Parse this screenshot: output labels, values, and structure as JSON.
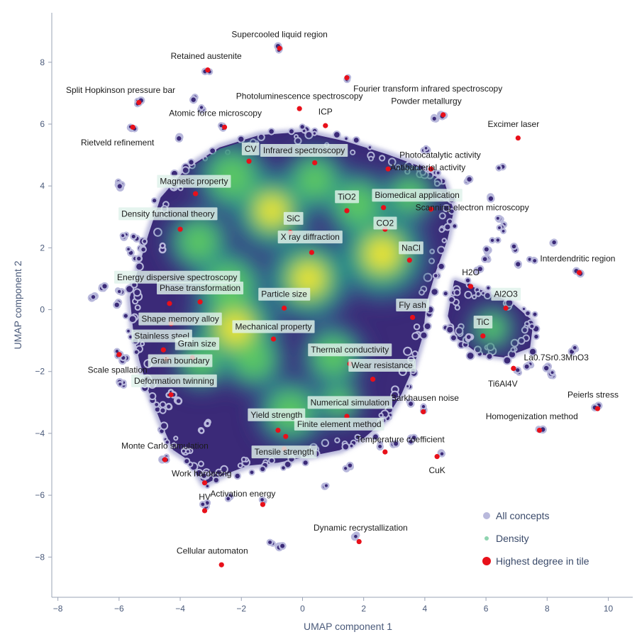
{
  "chart_data": {
    "type": "scatter",
    "title": "",
    "xlabel": "UMAP component 1",
    "ylabel": "UMAP component 2",
    "xlim": [
      -8.2,
      10.8
    ],
    "ylim": [
      -9.3,
      9.6
    ],
    "xticks": [
      -8,
      -6,
      -4,
      -2,
      0,
      2,
      4,
      6,
      8,
      10
    ],
    "yticks": [
      -8,
      -6,
      -4,
      -2,
      0,
      2,
      4,
      6,
      8
    ],
    "xtick_labels": [
      "−8",
      "−6",
      "−4",
      "−2",
      "0",
      "2",
      "4",
      "6",
      "8",
      "10"
    ],
    "ytick_labels": [
      "−8",
      "−6",
      "−4",
      "−2",
      "0",
      "2",
      "4",
      "6",
      "8"
    ],
    "grid": false,
    "legend": {
      "placement": "bottom-right",
      "entries": [
        {
          "label": "All concepts",
          "color": "#b9b9dc"
        },
        {
          "label": "Density",
          "color": "#8fd4b0"
        },
        {
          "label": "Highest degree in tile",
          "color": "#e8101a"
        }
      ]
    },
    "colors": {
      "concepts_halo": "#b9b9dc",
      "concepts_core": "#3b2a78",
      "density_low": "#3b528b",
      "density_mid": "#21918c",
      "density_high": "#5ec962",
      "density_peak": "#fde725",
      "highlight": "#e8101a",
      "label_bg": "#dff1ea"
    },
    "main_cluster": {
      "outline": [
        [
          -3.2,
          -5.6
        ],
        [
          -3.6,
          -4.9
        ],
        [
          -4.2,
          -4.5
        ],
        [
          -4.6,
          -3.6
        ],
        [
          -5.0,
          -2.6
        ],
        [
          -5.3,
          -1.6
        ],
        [
          -5.5,
          -0.6
        ],
        [
          -5.6,
          0.4
        ],
        [
          -5.3,
          1.4
        ],
        [
          -5.0,
          2.4
        ],
        [
          -4.6,
          3.6
        ],
        [
          -3.8,
          4.5
        ],
        [
          -2.7,
          5.2
        ],
        [
          -1.4,
          5.6
        ],
        [
          0.0,
          5.7
        ],
        [
          1.4,
          5.4
        ],
        [
          2.7,
          5.0
        ],
        [
          3.8,
          4.6
        ],
        [
          4.6,
          4.1
        ],
        [
          4.9,
          3.2
        ],
        [
          4.7,
          2.3
        ],
        [
          4.3,
          1.2
        ],
        [
          4.0,
          0.2
        ],
        [
          3.9,
          -0.8
        ],
        [
          3.6,
          -1.8
        ],
        [
          3.2,
          -2.7
        ],
        [
          2.7,
          -3.5
        ],
        [
          2.0,
          -4.1
        ],
        [
          1.2,
          -4.5
        ],
        [
          0.2,
          -4.7
        ],
        [
          -0.8,
          -4.9
        ],
        [
          -1.8,
          -5.0
        ],
        [
          -2.6,
          -5.3
        ]
      ],
      "right_outline": [
        [
          5.0,
          0.9
        ],
        [
          5.8,
          0.6
        ],
        [
          6.8,
          0.2
        ],
        [
          7.5,
          -0.4
        ],
        [
          7.4,
          -1.2
        ],
        [
          6.6,
          -1.5
        ],
        [
          5.8,
          -1.4
        ],
        [
          5.1,
          -0.9
        ],
        [
          4.8,
          -0.2
        ]
      ],
      "hotspots": [
        {
          "x": -2.3,
          "y": 4.3,
          "intensity": 0.8
        },
        {
          "x": -1.0,
          "y": 3.2,
          "intensity": 0.9
        },
        {
          "x": 0.4,
          "y": 4.2,
          "intensity": 0.7
        },
        {
          "x": 1.8,
          "y": 3.4,
          "intensity": 0.75
        },
        {
          "x": 3.5,
          "y": 3.7,
          "intensity": 0.6
        },
        {
          "x": -3.4,
          "y": 2.2,
          "intensity": 0.7
        },
        {
          "x": -2.4,
          "y": 0.8,
          "intensity": 0.8
        },
        {
          "x": 0.2,
          "y": 1.0,
          "intensity": 0.95
        },
        {
          "x": 2.6,
          "y": 1.8,
          "intensity": 1.0
        },
        {
          "x": -2.2,
          "y": -0.6,
          "intensity": 1.0
        },
        {
          "x": -1.6,
          "y": -1.6,
          "intensity": 0.7
        },
        {
          "x": 1.0,
          "y": -1.5,
          "intensity": 0.7
        },
        {
          "x": -3.3,
          "y": -1.7,
          "intensity": 0.6
        },
        {
          "x": -0.4,
          "y": -3.3,
          "intensity": 0.75
        },
        {
          "x": 1.2,
          "y": -3.0,
          "intensity": 0.5
        },
        {
          "x": 6.2,
          "y": -0.6,
          "intensity": 0.5
        }
      ]
    },
    "isolated_concepts": [
      [
        -0.75,
        8.45
      ],
      [
        -3.1,
        7.75
      ],
      [
        1.45,
        7.5
      ],
      [
        -5.35,
        6.7
      ],
      [
        -3.5,
        6.8
      ],
      [
        -3.3,
        6.5
      ],
      [
        -4.0,
        5.6
      ],
      [
        -2.6,
        5.9
      ],
      [
        -5.55,
        5.9
      ],
      [
        -6.0,
        4.1
      ],
      [
        -5.9,
        4.0
      ],
      [
        -5.8,
        2.4
      ],
      [
        -5.5,
        2.3
      ],
      [
        -5.7,
        1.9
      ],
      [
        -5.4,
        1.6
      ],
      [
        -4.6,
        2.0
      ],
      [
        -6.0,
        0.6
      ],
      [
        -6.5,
        0.7
      ],
      [
        -6.8,
        0.4
      ],
      [
        -6.1,
        0.2
      ],
      [
        -6.0,
        -1.45
      ],
      [
        -5.8,
        -1.6
      ],
      [
        -5.9,
        -2.4
      ],
      [
        -4.0,
        -2.9
      ],
      [
        -4.4,
        -3.2
      ],
      [
        -4.3,
        -2.7
      ],
      [
        -3.1,
        -3.7
      ],
      [
        -3.3,
        -3.9
      ],
      [
        -4.5,
        -4.8
      ],
      [
        -3.2,
        -5.4
      ],
      [
        -3.2,
        -6.3
      ],
      [
        -2.4,
        -6.1
      ],
      [
        -1.3,
        -6.2
      ],
      [
        -1.0,
        -7.5
      ],
      [
        -0.7,
        -7.7
      ],
      [
        0.8,
        -5.7
      ],
      [
        1.5,
        -5.1
      ],
      [
        1.7,
        -7.3
      ],
      [
        2.5,
        -4.4
      ],
      [
        3.0,
        -4.3
      ],
      [
        3.6,
        -4.2
      ],
      [
        4.0,
        -3.2
      ],
      [
        3.5,
        -3.0
      ],
      [
        4.6,
        6.3
      ],
      [
        4.3,
        6.2
      ],
      [
        4.0,
        5.2
      ],
      [
        4.4,
        4.4
      ],
      [
        5.4,
        4.2
      ],
      [
        6.5,
        4.6
      ],
      [
        6.2,
        3.6
      ],
      [
        6.4,
        2.9
      ],
      [
        6.6,
        2.8
      ],
      [
        6.3,
        2.3
      ],
      [
        6.1,
        1.9
      ],
      [
        6.0,
        1.6
      ],
      [
        5.8,
        1.3
      ],
      [
        6.5,
        2.6
      ],
      [
        7.0,
        2.0
      ],
      [
        7.0,
        1.5
      ],
      [
        7.5,
        1.6
      ],
      [
        8.2,
        2.2
      ],
      [
        9.0,
        1.2
      ],
      [
        7.0,
        -2.0
      ],
      [
        7.4,
        -1.8
      ],
      [
        8.0,
        -1.9
      ],
      [
        8.2,
        -2.1
      ],
      [
        8.9,
        -1.3
      ],
      [
        5.5,
        -0.9
      ],
      [
        9.6,
        -3.1
      ],
      [
        7.8,
        -3.9
      ],
      [
        4.6,
        -4.6
      ],
      [
        -6.0,
        -1.4
      ]
    ],
    "highlights": [
      {
        "label": "Supercooled liquid region",
        "x": -0.75,
        "y": 8.45,
        "lx": -0.75,
        "ly": 8.9,
        "boxed": false
      },
      {
        "label": "Retained austenite",
        "x": -3.1,
        "y": 7.75,
        "lx": -3.15,
        "ly": 8.2,
        "boxed": false
      },
      {
        "label": "Fourier transform infrared spectroscopy",
        "x": 1.45,
        "y": 7.5,
        "lx": 4.1,
        "ly": 7.15,
        "boxed": false
      },
      {
        "label": "Split Hopkinson pressure bar",
        "x": -5.35,
        "y": 6.7,
        "lx": -5.95,
        "ly": 7.1,
        "boxed": false
      },
      {
        "label": "Photoluminescence spectroscopy",
        "x": -0.1,
        "y": 6.5,
        "lx": -0.1,
        "ly": 6.9,
        "boxed": false
      },
      {
        "label": "Powder metallurgy",
        "x": 4.6,
        "y": 6.3,
        "lx": 4.05,
        "ly": 6.75,
        "boxed": false
      },
      {
        "label": "ICP",
        "x": 0.75,
        "y": 5.95,
        "lx": 0.75,
        "ly": 6.4,
        "boxed": false
      },
      {
        "label": "Atomic force microscopy",
        "x": -2.55,
        "y": 5.9,
        "lx": -2.85,
        "ly": 6.35,
        "boxed": false
      },
      {
        "label": "Rietveld refinement",
        "x": -5.55,
        "y": 5.9,
        "lx": -6.05,
        "ly": 5.4,
        "boxed": false
      },
      {
        "label": "Excimer laser",
        "x": 7.05,
        "y": 5.55,
        "lx": 6.9,
        "ly": 6.0,
        "boxed": false
      },
      {
        "label": "CV",
        "x": -1.75,
        "y": 4.8,
        "lx": -1.7,
        "ly": 5.2,
        "boxed": true
      },
      {
        "label": "Infrared spectroscopy",
        "x": 0.4,
        "y": 4.75,
        "lx": 0.05,
        "ly": 5.15,
        "boxed": true
      },
      {
        "label": "Photocatalytic activity",
        "x": 4.2,
        "y": 4.55,
        "lx": 4.5,
        "ly": 5.0,
        "boxed": false
      },
      {
        "label": "Antibacterial activity",
        "x": 2.8,
        "y": 4.55,
        "lx": 4.1,
        "ly": 4.6,
        "boxed": false
      },
      {
        "label": "Magnetic property",
        "x": -3.5,
        "y": 3.75,
        "lx": -3.55,
        "ly": 4.15,
        "boxed": true
      },
      {
        "label": "TiO2",
        "x": 1.45,
        "y": 3.2,
        "lx": 1.45,
        "ly": 3.65,
        "boxed": true
      },
      {
        "label": "Biomedical application",
        "x": 2.65,
        "y": 3.3,
        "lx": 3.75,
        "ly": 3.7,
        "boxed": true
      },
      {
        "label": "Scanning electron microscopy",
        "x": 4.2,
        "y": 3.25,
        "lx": 5.55,
        "ly": 3.3,
        "boxed": false
      },
      {
        "label": "Density functional theory",
        "x": -4.0,
        "y": 2.6,
        "lx": -4.4,
        "ly": 3.1,
        "boxed": true
      },
      {
        "label": "SiC",
        "x": -0.4,
        "y": 2.5,
        "lx": -0.3,
        "ly": 2.95,
        "boxed": true
      },
      {
        "label": "CO2",
        "x": 2.7,
        "y": 2.6,
        "lx": 2.7,
        "ly": 2.8,
        "boxed": true
      },
      {
        "label": "X ray diffraction",
        "x": 0.3,
        "y": 1.85,
        "lx": 0.25,
        "ly": 2.35,
        "boxed": true
      },
      {
        "label": "NaCl",
        "x": 3.5,
        "y": 1.6,
        "lx": 3.55,
        "ly": 2.0,
        "boxed": true
      },
      {
        "label": "Interdendritic region",
        "x": 9.05,
        "y": 1.2,
        "lx": 9.0,
        "ly": 1.65,
        "boxed": false
      },
      {
        "label": "H2O",
        "x": 5.5,
        "y": 0.75,
        "lx": 5.5,
        "ly": 1.2,
        "boxed": false
      },
      {
        "label": "Energy dispersive spectroscopy",
        "x": -4.35,
        "y": 0.2,
        "lx": -4.1,
        "ly": 1.05,
        "boxed": true
      },
      {
        "label": "Phase transformation",
        "x": -3.35,
        "y": 0.25,
        "lx": -3.35,
        "ly": 0.7,
        "boxed": true
      },
      {
        "label": "Particle size",
        "x": -0.6,
        "y": 0.05,
        "lx": -0.6,
        "ly": 0.5,
        "boxed": true
      },
      {
        "label": "Al2O3",
        "x": 6.65,
        "y": 0.05,
        "lx": 6.65,
        "ly": 0.5,
        "boxed": true
      },
      {
        "label": "Fly ash",
        "x": 3.6,
        "y": -0.25,
        "lx": 3.6,
        "ly": 0.15,
        "boxed": true
      },
      {
        "label": "Shape memory alloy",
        "x": -4.3,
        "y": -0.45,
        "lx": -4.0,
        "ly": -0.3,
        "boxed": true
      },
      {
        "label": "TiC",
        "x": 5.9,
        "y": -0.85,
        "lx": 5.9,
        "ly": -0.4,
        "boxed": true
      },
      {
        "label": "Mechanical property",
        "x": -0.95,
        "y": -0.95,
        "lx": -0.95,
        "ly": -0.55,
        "boxed": true
      },
      {
        "label": "Stainless steel",
        "x": -4.55,
        "y": -1.3,
        "lx": -4.6,
        "ly": -0.85,
        "boxed": true
      },
      {
        "label": "Grain size",
        "x": -3.6,
        "y": -1.55,
        "lx": -3.45,
        "ly": -1.1,
        "boxed": true
      },
      {
        "label": "Thermal conductivity",
        "x": 1.55,
        "y": -1.75,
        "lx": 1.55,
        "ly": -1.3,
        "boxed": true
      },
      {
        "label": "Grain boundary",
        "x": -4.45,
        "y": -1.6,
        "lx": -4.0,
        "ly": -1.65,
        "boxed": true
      },
      {
        "label": "Wear resistance",
        "x": 2.3,
        "y": -2.25,
        "lx": 2.6,
        "ly": -1.8,
        "boxed": true
      },
      {
        "label": "La0.7Sr0.3MnO3",
        "x": 6.9,
        "y": -1.9,
        "lx": 8.3,
        "ly": -1.55,
        "boxed": false
      },
      {
        "label": "Scale spallation",
        "x": -6.0,
        "y": -1.45,
        "lx": -6.05,
        "ly": -1.95,
        "boxed": false
      },
      {
        "label": "Ti6Al4V",
        "x": 6.9,
        "y": -1.9,
        "lx": 6.55,
        "ly": -2.4,
        "boxed": false
      },
      {
        "label": "Deformation twinning",
        "x": -4.3,
        "y": -2.75,
        "lx": -4.2,
        "ly": -2.3,
        "boxed": true
      },
      {
        "label": "Barkhausen noise",
        "x": 3.95,
        "y": -3.3,
        "lx": 4.0,
        "ly": -2.85,
        "boxed": false
      },
      {
        "label": "Peierls stress",
        "x": 9.65,
        "y": -3.2,
        "lx": 9.5,
        "ly": -2.75,
        "boxed": false
      },
      {
        "label": "Numerical simulation",
        "x": 1.45,
        "y": -3.45,
        "lx": 1.55,
        "ly": -3.0,
        "boxed": true
      },
      {
        "label": "Yield strength",
        "x": -0.8,
        "y": -3.9,
        "lx": -0.85,
        "ly": -3.4,
        "boxed": true
      },
      {
        "label": "Homogenization method",
        "x": 7.75,
        "y": -3.9,
        "lx": 7.5,
        "ly": -3.45,
        "boxed": false
      },
      {
        "label": "Finite element method",
        "x": -0.55,
        "y": -4.1,
        "lx": 1.2,
        "ly": -3.7,
        "boxed": true
      },
      {
        "label": "Temperature coefficient",
        "x": 2.7,
        "y": -4.6,
        "lx": 3.2,
        "ly": -4.2,
        "boxed": false
      },
      {
        "label": "Monte Carlo simulation",
        "x": -4.5,
        "y": -4.85,
        "lx": -4.5,
        "ly": -4.4,
        "boxed": false
      },
      {
        "label": "Tensile strength",
        "x": -0.6,
        "y": -4.5,
        "lx": -0.6,
        "ly": -4.6,
        "boxed": true
      },
      {
        "label": "CuK",
        "x": 4.4,
        "y": -4.75,
        "lx": 4.4,
        "ly": -5.2,
        "boxed": false
      },
      {
        "label": "Work hardening",
        "x": -3.2,
        "y": -5.6,
        "lx": -3.3,
        "ly": -5.3,
        "boxed": false
      },
      {
        "label": "Activation energy",
        "x": -1.3,
        "y": -6.3,
        "lx": -1.95,
        "ly": -5.95,
        "boxed": false
      },
      {
        "label": "HV",
        "x": -3.2,
        "y": -6.5,
        "lx": -3.2,
        "ly": -6.05,
        "boxed": false
      },
      {
        "label": "Dynamic recrystallization",
        "x": 1.85,
        "y": -7.5,
        "lx": 1.9,
        "ly": -7.05,
        "boxed": false
      },
      {
        "label": "Cellular automaton",
        "x": -2.65,
        "y": -8.25,
        "lx": -2.95,
        "ly": -7.8,
        "boxed": false
      }
    ]
  }
}
